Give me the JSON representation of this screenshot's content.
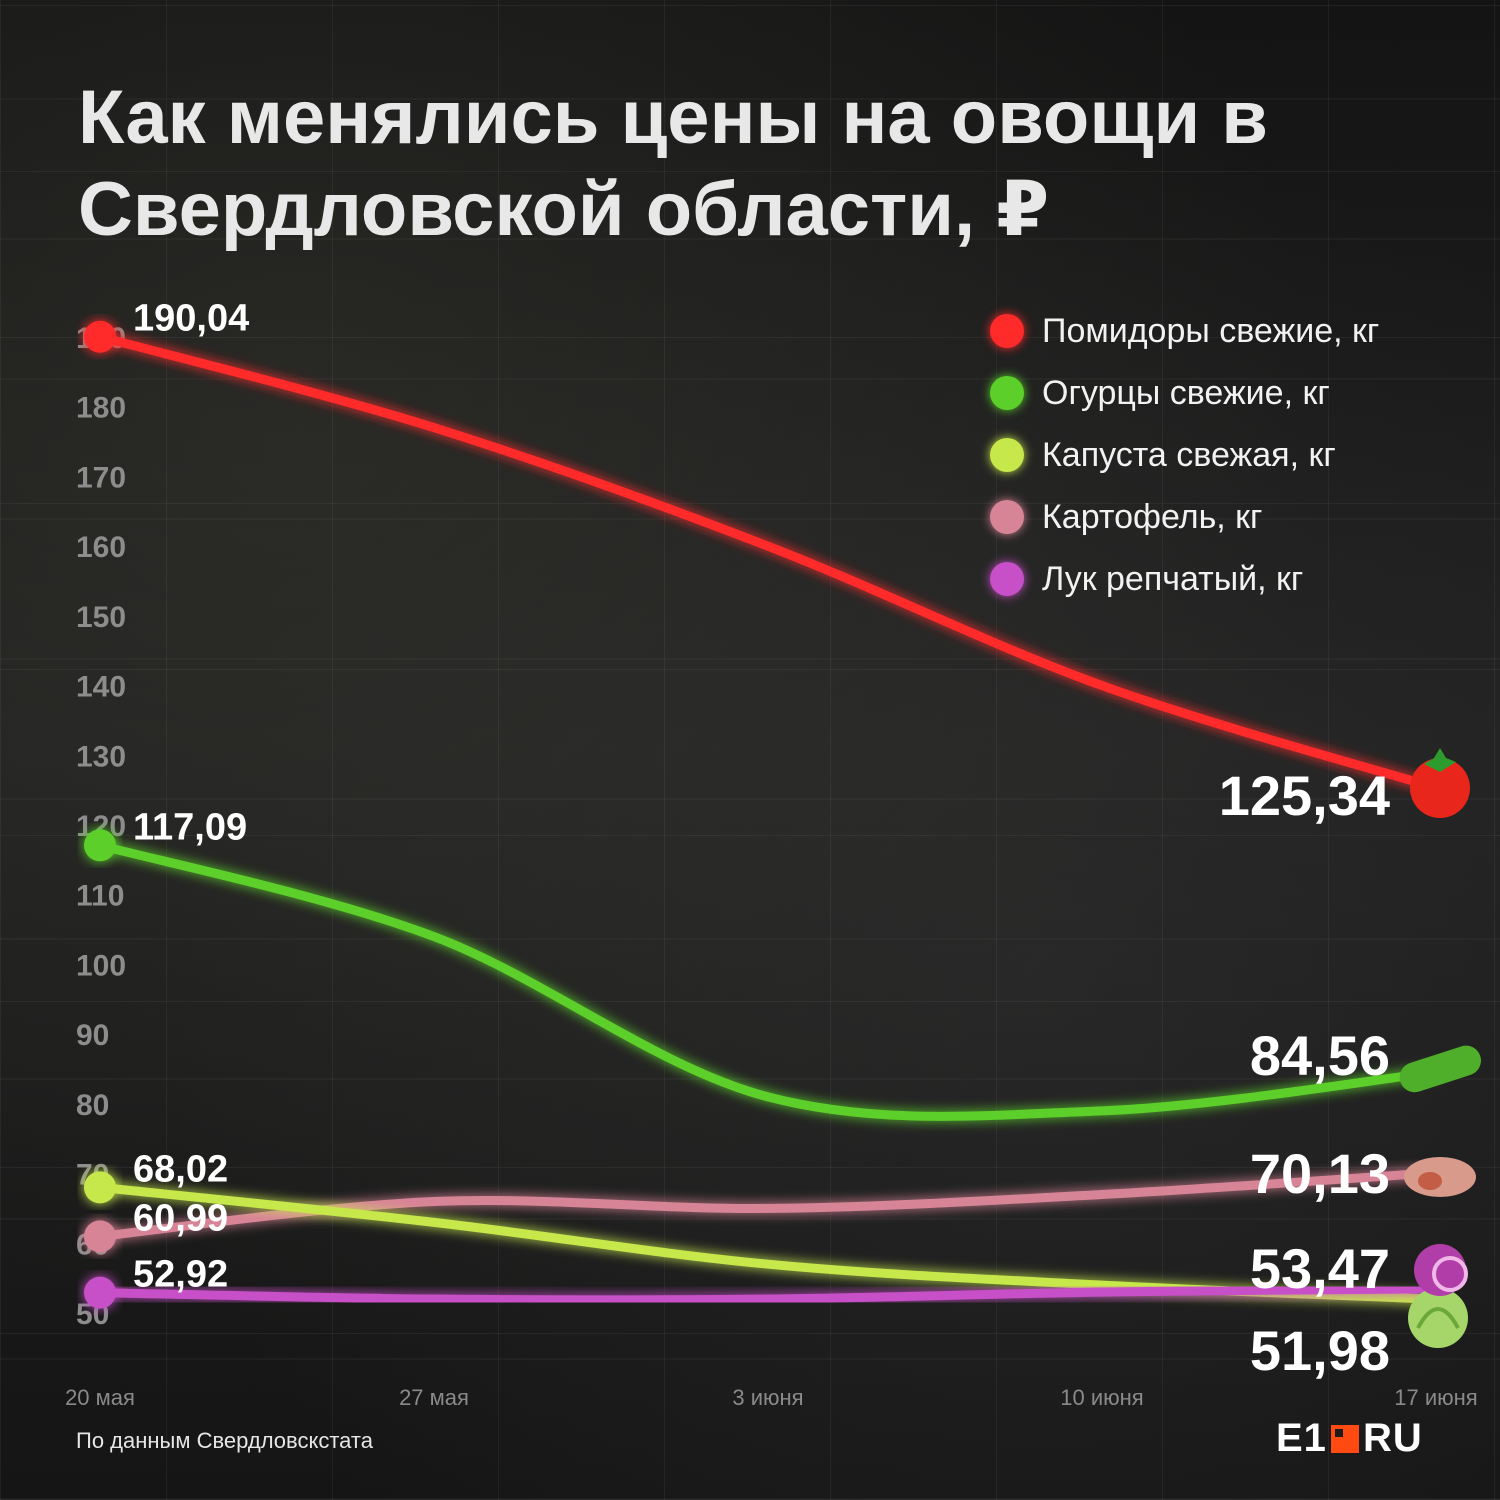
{
  "title": "Как менялись цены на овощи в Свердловской области, ₽",
  "source": "По данным Свердловскстата",
  "logo": {
    "left": "E1",
    "right": "RU"
  },
  "chart_data": {
    "type": "line",
    "title": "Как менялись цены на овощи в Свердловской области, ₽",
    "x": [
      "20 мая",
      "27 мая",
      "3 июня",
      "10 июня",
      "17 июня"
    ],
    "ylim": [
      50,
      190
    ],
    "yticks": [
      50,
      60,
      70,
      80,
      90,
      100,
      110,
      120,
      130,
      140,
      150,
      160,
      170,
      180,
      190
    ],
    "legend_position": "top-right",
    "grid": false,
    "series": [
      {
        "name": "Помидоры свежие, кг",
        "color": "#ff2a2a",
        "icon": "tomato-icon",
        "values": [
          190.04,
          177,
          160,
          140,
          125.34
        ],
        "start_label": "190,04",
        "end_label": "125,34"
      },
      {
        "name": "Огурцы свежие, кг",
        "color": "#5ccf2a",
        "icon": "cucumber-icon",
        "values": [
          117.09,
          104,
          81,
          79,
          84.56
        ],
        "start_label": "117,09",
        "end_label": "84,56"
      },
      {
        "name": "Капуста свежая, кг",
        "color": "#c6e84b",
        "icon": "cabbage-icon",
        "values": [
          68.02,
          63,
          57,
          54,
          51.98
        ],
        "start_label": "68,02",
        "end_label": "51,98"
      },
      {
        "name": "Картофель, кг",
        "color": "#d88497",
        "icon": "potato-icon",
        "values": [
          60.99,
          66,
          65,
          67,
          70.13
        ],
        "start_label": "60,99",
        "end_label": "70,13"
      },
      {
        "name": "Лук репчатый, кг",
        "color": "#c74fc7",
        "icon": "onion-icon",
        "values": [
          52.92,
          52,
          52,
          53,
          53.47
        ],
        "start_label": "52,92",
        "end_label": "53,47"
      }
    ]
  }
}
